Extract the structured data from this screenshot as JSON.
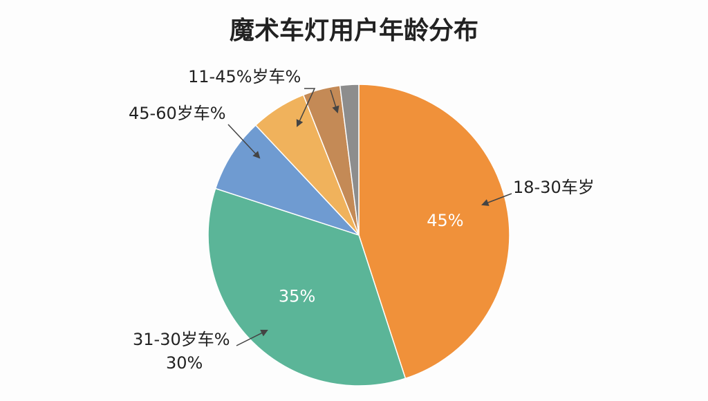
{
  "chart_data": {
    "type": "pie",
    "title": "魔术车灯用户年龄分布",
    "categories": [
      "18-30车岁",
      "31-30岁车%",
      "45-60岁车%",
      null,
      "11-45%岁车%",
      null
    ],
    "values": [
      45,
      35,
      8,
      6,
      4,
      2
    ],
    "value_labels": [
      "45%",
      "35%",
      null,
      null,
      null,
      null
    ],
    "colors": [
      "#f0913a",
      "#5bb598",
      "#6f9bd1",
      "#f0b25c",
      "#c48a56",
      "#8d8d8d"
    ],
    "annotations": [
      "30%"
    ]
  }
}
